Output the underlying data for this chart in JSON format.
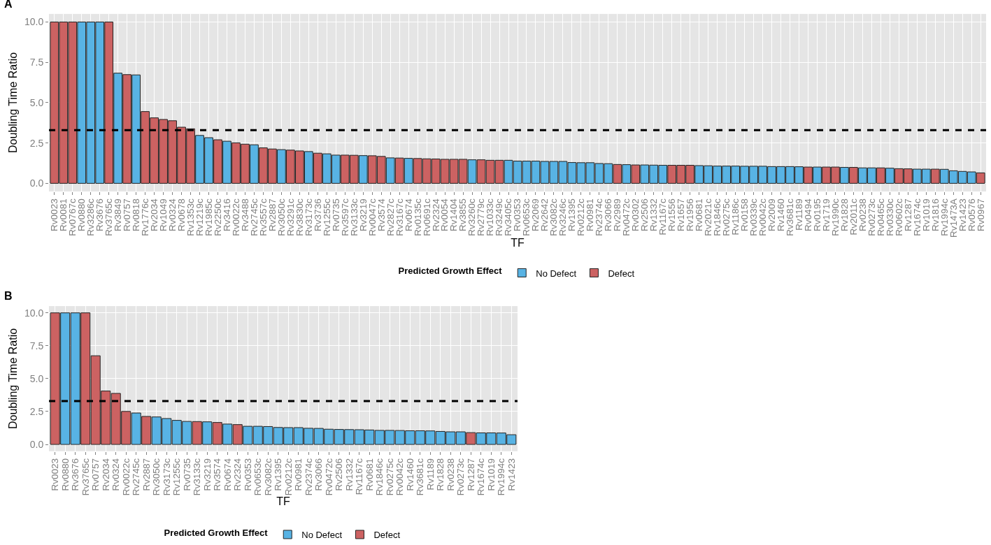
{
  "chart_data": [
    {
      "type": "bar",
      "title": "A",
      "xlabel": "TF",
      "ylabel": "Doubling Time Ratio",
      "legend_title": "Predicted Growth Effect",
      "legend": "bottom",
      "grid": true,
      "categories": [
        "Rv0023",
        "Rv0081",
        "Rv0767c",
        "Rv0880",
        "Rv3286c",
        "Rv3676",
        "Rv3765c",
        "Rv3849",
        "Rv0757",
        "Rv0818",
        "Rv1776c",
        "Rv2034",
        "Rv1049",
        "Rv0324",
        "Rv0678",
        "Rv1353c",
        "Rv1219c",
        "Rv1985c",
        "Rv2250c",
        "Rv3416",
        "Rv0022c",
        "Rv3488",
        "Rv2745c",
        "Rv3557c",
        "Rv2887",
        "Rv3050c",
        "Rv3291c",
        "Rv3830c",
        "Rv3173c",
        "Rv3736",
        "Rv1255c",
        "Rv0735",
        "Rv3597c",
        "Rv3133c",
        "Rv3219",
        "Rv0047c",
        "Rv3574",
        "Rv2827c",
        "Rv3167c",
        "Rv0674",
        "Rv0135c",
        "Rv0691c",
        "Rv2324",
        "Rv0054",
        "Rv1404",
        "Rv3855",
        "Rv3260c",
        "Rv2779c",
        "Rv1033c",
        "Rv3249c",
        "Rv3405c",
        "Rv0353",
        "Rv0653c",
        "Rv2069",
        "Rv2642",
        "Rv3082c",
        "Rv3246c",
        "Rv1395",
        "Rv0212c",
        "Rv0981",
        "Rv2374c",
        "Rv3066",
        "Rv2989",
        "Rv0472c",
        "Rv0302",
        "Rv2506",
        "Rv1332",
        "Rv1167c",
        "Rv1556",
        "Rv1657",
        "Rv1956",
        "Rv0681",
        "Rv2021c",
        "Rv1846c",
        "Rv0275c",
        "Rv1186c",
        "Rv0158",
        "Rv0339c",
        "Rv0042c",
        "Rv2009",
        "Rv1460",
        "Rv3681c",
        "Rv1189",
        "Rv0494",
        "Rv0195",
        "Rv1719",
        "Rv1990c",
        "Rv1828",
        "Rv2011c",
        "Rv0238",
        "Rv0273c",
        "Rv0465c",
        "Rv0330c",
        "Rv0602c",
        "Rv1287",
        "Rv1674c",
        "Rv1019",
        "Rv1816",
        "Rv1994c",
        "Rv1473A",
        "Rv1423",
        "Rv0576",
        "Rv0967"
      ],
      "series": [
        {
          "name": "No Defect",
          "color": "#58b3e4",
          "values": [
            null,
            null,
            null,
            10,
            10,
            10,
            null,
            6.83,
            null,
            6.72,
            null,
            null,
            null,
            null,
            null,
            null,
            2.97,
            2.83,
            null,
            2.61,
            null,
            null,
            2.39,
            null,
            null,
            2.09,
            null,
            null,
            1.97,
            null,
            1.83,
            1.75,
            null,
            null,
            1.72,
            null,
            null,
            1.58,
            null,
            1.55,
            null,
            null,
            null,
            null,
            null,
            null,
            1.46,
            null,
            null,
            null,
            1.43,
            1.38,
            1.38,
            1.38,
            1.36,
            1.36,
            1.36,
            1.29,
            1.28,
            1.28,
            1.23,
            1.22,
            null,
            1.16,
            null,
            1.14,
            1.13,
            1.12,
            null,
            null,
            null,
            1.1,
            1.09,
            1.07,
            1.07,
            1.07,
            1.06,
            1.06,
            1.06,
            1.04,
            1.04,
            1.04,
            1.03,
            null,
            1.01,
            null,
            null,
            0.99,
            null,
            0.96,
            0.96,
            null,
            0.94,
            null,
            null,
            0.88,
            0.88,
            null,
            0.87,
            0.78,
            0.74,
            0.71,
            null
          ]
        },
        {
          "name": "Defect",
          "color": "#cc6262",
          "values": [
            10,
            10,
            10,
            null,
            null,
            null,
            10,
            null,
            6.74,
            null,
            4.45,
            4.06,
            3.96,
            3.88,
            3.48,
            3.38,
            null,
            null,
            2.7,
            null,
            2.51,
            2.43,
            null,
            2.2,
            2.13,
            null,
            2.06,
            2.01,
            null,
            1.87,
            null,
            null,
            1.75,
            1.74,
            null,
            1.71,
            1.67,
            null,
            1.57,
            null,
            1.54,
            1.52,
            1.51,
            1.49,
            1.49,
            1.49,
            null,
            1.46,
            1.43,
            1.43,
            null,
            null,
            null,
            null,
            null,
            null,
            null,
            null,
            null,
            null,
            null,
            null,
            1.17,
            null,
            1.14,
            null,
            null,
            null,
            1.12,
            1.12,
            1.12,
            null,
            null,
            null,
            null,
            null,
            null,
            null,
            null,
            null,
            null,
            null,
            null,
            1.01,
            null,
            1.01,
            1.01,
            null,
            0.99,
            null,
            null,
            0.96,
            null,
            0.91,
            0.9,
            null,
            null,
            0.88,
            null,
            null,
            null,
            null,
            0.65
          ]
        }
      ],
      "ylim": [
        -0.5,
        10.5
      ],
      "yticks": [
        {
          "value": 0,
          "label": "0.0"
        },
        {
          "value": 2.5,
          "label": "2.5"
        },
        {
          "value": 5,
          "label": "5.0"
        },
        {
          "value": 7.5,
          "label": "7.5"
        },
        {
          "value": 10,
          "label": "10.0"
        }
      ],
      "ref_lines": [
        {
          "axis": "y",
          "value": 3.3,
          "color": "#000000",
          "line_style": "dashed"
        }
      ]
    },
    {
      "type": "bar",
      "title": "B",
      "xlabel": "TF",
      "ylabel": "Doubling Time Ratio",
      "legend_title": "Predicted Growth Effect",
      "legend": "bottom",
      "grid": true,
      "categories": [
        "Rv0023",
        "Rv0880",
        "Rv3676",
        "Rv3765c",
        "Rv0757",
        "Rv2034",
        "Rv0324",
        "Rv0022c",
        "Rv2745c",
        "Rv2887",
        "Rv3050c",
        "Rv3173c",
        "Rv1255c",
        "Rv0735",
        "Rv3133c",
        "Rv3219",
        "Rv3574",
        "Rv0674",
        "Rv2324",
        "Rv0353",
        "Rv0653c",
        "Rv3082c",
        "Rv1395",
        "Rv0212c",
        "Rv0981",
        "Rv2374c",
        "Rv3066",
        "Rv0472c",
        "Rv2506",
        "Rv1332",
        "Rv1167c",
        "Rv0681",
        "Rv1846c",
        "Rv0275c",
        "Rv0042c",
        "Rv1460",
        "Rv3681c",
        "Rv1189",
        "Rv1828",
        "Rv0238",
        "Rv0273c",
        "Rv1287",
        "Rv1674c",
        "Rv1019",
        "Rv1994c",
        "Rv1423"
      ],
      "series": [
        {
          "name": "No Defect",
          "color": "#58b3e4",
          "values": [
            null,
            10,
            10,
            null,
            null,
            null,
            null,
            null,
            2.39,
            null,
            2.09,
            1.97,
            1.83,
            1.75,
            null,
            1.72,
            null,
            1.55,
            null,
            1.38,
            1.38,
            1.36,
            1.29,
            1.28,
            1.28,
            1.23,
            1.22,
            1.16,
            1.14,
            1.13,
            1.12,
            1.1,
            1.07,
            1.07,
            1.06,
            1.04,
            1.04,
            1.03,
            0.99,
            0.96,
            0.96,
            null,
            0.88,
            0.88,
            0.87,
            0.74
          ]
        },
        {
          "name": "Defect",
          "color": "#cc6262",
          "values": [
            10,
            null,
            null,
            10,
            6.74,
            4.06,
            3.88,
            2.51,
            null,
            2.13,
            null,
            null,
            null,
            null,
            1.74,
            null,
            1.67,
            null,
            1.51,
            null,
            null,
            null,
            null,
            null,
            null,
            null,
            null,
            null,
            null,
            null,
            null,
            null,
            null,
            null,
            null,
            null,
            null,
            null,
            null,
            null,
            null,
            0.9,
            null,
            null,
            null,
            null
          ]
        }
      ],
      "ylim": [
        -0.5,
        10.5
      ],
      "yticks": [
        {
          "value": 0,
          "label": "0.0"
        },
        {
          "value": 2.5,
          "label": "2.5"
        },
        {
          "value": 5,
          "label": "5.0"
        },
        {
          "value": 7.5,
          "label": "7.5"
        },
        {
          "value": 10,
          "label": "10.0"
        }
      ],
      "ref_lines": [
        {
          "axis": "y",
          "value": 3.3,
          "color": "#000000",
          "line_style": "dashed"
        }
      ]
    }
  ]
}
